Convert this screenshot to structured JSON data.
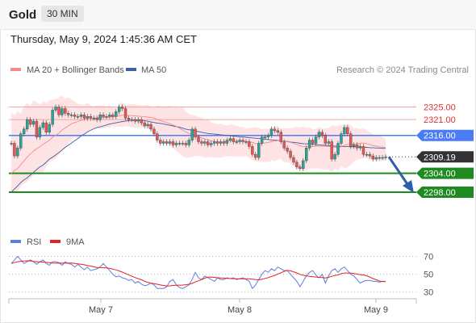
{
  "header": {
    "title": "Gold",
    "timeframe": "30 MIN"
  },
  "datetime": "Thursday, May 9, 2024 1:45:36 AM CET",
  "colors": {
    "up": "#26a69a",
    "down": "#ef5350",
    "ma20": "#f08c8c",
    "ma50": "#3f5fa8",
    "band_fill": "#fde0e0",
    "resistance": "#f4a3a3",
    "pivot": "#4a7cf5",
    "support": "#1f8a1f",
    "current": "#333333",
    "rsi": "#5b7fdc",
    "rsi_ma": "#e62020",
    "arrow": "#2e5fa8"
  },
  "chart_data": [
    {
      "type": "line",
      "legend": [
        {
          "name": "MA 20 + Bollinger Bands",
          "color": "#f08c8c"
        },
        {
          "name": "MA 50",
          "color": "#3f5fa8"
        }
      ],
      "copyright": "Research © 2024 Trading Central",
      "ylim": [
        2293.4,
        2332.3
      ],
      "x_labels": [
        "May 7",
        "May 8",
        "May 9"
      ],
      "levels": [
        {
          "label": "2325.00",
          "value": 2325.0,
          "kind": "resistance"
        },
        {
          "label": "2321.00",
          "value": 2321.0,
          "kind": "resistance"
        },
        {
          "label": "2316.00",
          "value": 2316.0,
          "kind": "pivot"
        },
        {
          "label": "2304.00",
          "value": 2304.0,
          "kind": "support"
        },
        {
          "label": "2298.00",
          "value": 2298.0,
          "kind": "support"
        }
      ],
      "current_price": {
        "label": "2309.19",
        "value": 2309.19
      },
      "forecast": {
        "from": 2309.2,
        "to": 2298.0
      },
      "price_series": [
        2313.5,
        2309.5,
        2312.0,
        2316.5,
        2318.0,
        2321.0,
        2319.5,
        2320.5,
        2315.5,
        2318.5,
        2320.0,
        2317.0,
        2319.5,
        2324.0,
        2325.0,
        2322.5,
        2324.5,
        2323.0,
        2322.5,
        2322.5,
        2322.0,
        2322.0,
        2322.5,
        2321.5,
        2322.0,
        2321.5,
        2321.5,
        2321.0,
        2322.5,
        2322.0,
        2322.0,
        2322.5,
        2322.0,
        2323.5,
        2325.0,
        2324.5,
        2321.5,
        2321.0,
        2321.0,
        2320.5,
        2321.0,
        2320.0,
        2319.0,
        2319.5,
        2318.0,
        2316.5,
        2314.5,
        2313.5,
        2314.0,
        2313.5,
        2314.0,
        2313.0,
        2313.5,
        2313.5,
        2313.5,
        2313.0,
        2314.5,
        2318.0,
        2315.5,
        2314.0,
        2313.5,
        2314.0,
        2313.0,
        2313.5,
        2314.0,
        2313.5,
        2314.0,
        2313.5,
        2314.5,
        2315.0,
        2314.0,
        2314.0,
        2314.5,
        2314.0,
        2314.0,
        2312.5,
        2310.0,
        2309.0,
        2313.5,
        2315.5,
        2315.5,
        2316.0,
        2318.0,
        2317.5,
        2317.0,
        2314.0,
        2312.0,
        2311.0,
        2309.0,
        2307.5,
        2306.0,
        2305.5,
        2308.0,
        2312.0,
        2314.5,
        2313.5,
        2315.5,
        2317.0,
        2316.0,
        2313.5,
        2314.0,
        2308.5,
        2310.0,
        2313.5,
        2316.5,
        2318.5,
        2316.5,
        2312.5,
        2313.0,
        2312.0,
        2312.5,
        2310.0,
        2310.0,
        2309.5,
        2308.5,
        2309.0,
        2309.0,
        2309.0,
        2309.19
      ],
      "ma20_series": [
        2303.9,
        2304.9,
        2305.5,
        2306.7,
        2307.9,
        2309.1,
        2310.1,
        2311.0,
        2311.8,
        2312.4,
        2313.2,
        2313.8,
        2314.5,
        2315.4,
        2316.1,
        2316.7,
        2317.7,
        2318.4,
        2319.0,
        2319.7,
        2320.1,
        2320.4,
        2320.8,
        2321.1,
        2321.3,
        2321.6,
        2321.5,
        2321.6,
        2321.6,
        2321.8,
        2321.7,
        2321.8,
        2321.9,
        2322.0,
        2322.2,
        2322.4,
        2322.4,
        2322.3,
        2322.3,
        2322.2,
        2322.1,
        2322.0,
        2321.9,
        2321.8,
        2321.7,
        2321.5,
        2321.1,
        2320.7,
        2320.4,
        2320.0,
        2319.7,
        2319.3,
        2318.9,
        2318.3,
        2317.7,
        2317.1,
        2316.6,
        2316.4,
        2316.0,
        2315.6,
        2315.2,
        2314.9,
        2314.6,
        2314.3,
        2314.1,
        2313.9,
        2313.9,
        2313.9,
        2314.2,
        2314.4,
        2314.3,
        2314.2,
        2314.2,
        2314.2,
        2314.1,
        2314.0,
        2313.8,
        2313.4,
        2313.4,
        2313.5,
        2313.6,
        2313.8,
        2314.0,
        2314.2,
        2314.3,
        2314.3,
        2314.2,
        2314.0,
        2313.8,
        2313.5,
        2313.1,
        2312.7,
        2312.5,
        2312.5,
        2312.5,
        2312.5,
        2312.6,
        2312.6,
        2312.6,
        2312.6,
        2312.5,
        2312.4,
        2312.2,
        2312.2,
        2312.4,
        2312.9,
        2313.1,
        2313.1,
        2313.2,
        2313.4,
        2313.5,
        2313.6,
        2313.4,
        2313.1,
        2312.8,
        2312.6,
        2312.4,
        2312.3,
        2312.1
      ],
      "upper_band_series": [
        2323.2,
        2322.4,
        2323.6,
        2322.9,
        2325.3,
        2326.3,
        2325.3,
        2327.2,
        2326.6,
        2325.8,
        2326.8,
        2326.3,
        2327.1,
        2327.3,
        2327.5,
        2328.1,
        2328.5,
        2327.7,
        2328.0,
        2327.4,
        2326.8,
        2326.1,
        2325.7,
        2325.7,
        2326.3,
        2325.5,
        2325.2,
        2325.6,
        2325.5,
        2325.5,
        2325.2,
        2325.4,
        2325.0,
        2324.8,
        2325.8,
        2326.5,
        2325.7,
        2325.8,
        2325.9,
        2325.8,
        2325.7,
        2325.5,
        2325.6,
        2325.8,
        2325.0,
        2324.8,
        2325.5,
        2325.3,
        2324.9,
        2325.3,
        2325.4,
        2325.2,
        2325.2,
        2324.7,
        2325.0,
        2323.6,
        2322.8,
        2322.4,
        2322.4,
        2321.9,
        2321.6,
        2321.1,
        2321.2,
        2320.1,
        2319.8,
        2319.6,
        2319.7,
        2319.3,
        2319.2,
        2319.5,
        2319.4,
        2319.2,
        2318.6,
        2318.7,
        2318.1,
        2318.4,
        2318.4,
        2318.7,
        2318.4,
        2317.9,
        2318.2,
        2317.9,
        2318.5,
        2319.1,
        2319.0,
        2318.2,
        2318.2,
        2318.3,
        2318.3,
        2318.5,
        2318.7,
        2318.5,
        2318.9,
        2318.4,
        2318.6,
        2317.9,
        2318.0,
        2318.6,
        2318.3,
        2318.2,
        2318.5,
        2319.1,
        2319.1,
        2318.9,
        2319.3,
        2319.3,
        2319.6,
        2319.3,
        2318.2,
        2318.4,
        2318.0,
        2318.2,
        2317.8,
        2317.0,
        2316.4,
        2316.1,
        2315.8,
        2315.5,
        2315.0
      ],
      "lower_band_series": [
        2298.3,
        2297.9,
        2297.9,
        2300.0,
        2300.8,
        2301.2,
        2302.6,
        2303.4,
        2304.2,
        2303.6,
        2304.3,
        2306.1,
        2307.7,
        2308.1,
        2308.8,
        2309.9,
        2310.7,
        2311.9,
        2313.3,
        2314.6,
        2315.3,
        2315.3,
        2316.0,
        2316.3,
        2317.2,
        2317.8,
        2318.1,
        2318.4,
        2318.2,
        2318.2,
        2318.5,
        2318.4,
        2318.9,
        2318.8,
        2318.8,
        2318.7,
        2319.0,
        2318.8,
        2318.5,
        2318.5,
        2318.5,
        2318.6,
        2318.6,
        2318.2,
        2317.5,
        2316.6,
        2315.7,
        2314.8,
        2313.5,
        2313.2,
        2312.9,
        2312.0,
        2311.2,
        2310.3,
        2309.5,
        2308.9,
        2309.0,
        2309.1,
        2309.6,
        2309.4,
        2309.3,
        2309.0,
        2309.2,
        2309.1,
        2308.9,
        2309.0,
        2309.0,
        2309.2,
        2309.4,
        2309.4,
        2309.3,
        2309.3,
        2309.5,
        2309.2,
        2309.5,
        2308.9,
        2308.1,
        2307.8,
        2307.7,
        2307.6,
        2307.6,
        2307.5,
        2308.1,
        2307.8,
        2308.4,
        2308.6,
        2307.4,
        2307.5,
        2307.1,
        2306.2,
        2305.5,
        2305.3,
        2304.7,
        2305.0,
        2305.5,
        2305.5,
        2305.5,
        2305.5,
        2305.2,
        2305.2,
        2305.1,
        2304.5,
        2305.5,
        2304.9,
        2306.1,
        2305.6,
        2305.8,
        2306.6,
        2307.7,
        2308.3,
        2308.5,
        2308.8,
        2308.8,
        2308.2,
        2308.3,
        2308.1,
        2307.7,
        2308.0,
        2307.9
      ],
      "ma50_series": [
        2298.0,
        2299.0,
        2300.0,
        2301.1,
        2301.9,
        2302.6,
        2303.4,
        2304.3,
        2305.2,
        2306.0,
        2306.6,
        2307.5,
        2308.5,
        2309.1,
        2309.8,
        2310.6,
        2311.4,
        2312.2,
        2312.9,
        2313.6,
        2314.3,
        2315.0,
        2315.8,
        2316.4,
        2317.1,
        2317.6,
        2318.1,
        2318.5,
        2318.7,
        2319.0,
        2319.3,
        2319.6,
        2319.8,
        2320.0,
        2320.2,
        2320.4,
        2320.5,
        2320.7,
        2320.8,
        2320.9,
        2320.9,
        2320.8,
        2320.6,
        2320.5,
        2320.3,
        2320.1,
        2319.9,
        2319.8,
        2319.6,
        2319.4,
        2319.2,
        2319.0,
        2318.8,
        2318.6,
        2318.3,
        2318.0,
        2317.8,
        2317.6,
        2317.4,
        2317.2,
        2317.0,
        2316.8,
        2316.6,
        2316.5,
        2316.4,
        2316.3,
        2316.2,
        2316.1,
        2316.0,
        2315.9,
        2315.8,
        2315.7,
        2315.6,
        2315.5,
        2315.4,
        2315.3,
        2315.2,
        2315.1,
        2315.0,
        2314.9,
        2314.8,
        2314.7,
        2314.6,
        2314.5,
        2314.4,
        2314.3,
        2314.2,
        2314.1,
        2313.9,
        2313.8,
        2313.7,
        2313.5,
        2313.4,
        2313.3,
        2313.3,
        2313.2,
        2313.1,
        2313.0,
        2312.9,
        2312.9,
        2312.8,
        2312.7,
        2312.6,
        2312.6,
        2312.5,
        2312.5,
        2312.5,
        2312.4,
        2312.4,
        2312.4,
        2312.3,
        2312.3,
        2312.2,
        2312.1,
        2312.1,
        2312.0,
        2312.0,
        2311.9,
        2311.9
      ]
    },
    {
      "type": "line",
      "legend": [
        {
          "name": "RSI",
          "color": "#5b7fdc"
        },
        {
          "name": "9MA",
          "color": "#e62020"
        }
      ],
      "ylim": [
        26,
        75
      ],
      "y_ticks": [
        70,
        50,
        30
      ],
      "rsi_series": [
        62.0,
        66.0,
        70.0,
        66.0,
        62.0,
        64.0,
        66.0,
        64.0,
        61.0,
        64.0,
        66.0,
        62.0,
        60.0,
        64.0,
        64.0,
        63.0,
        60.0,
        64.0,
        62.0,
        61.0,
        58.0,
        61.0,
        58.0,
        55.0,
        58.0,
        54.0,
        55.0,
        56.0,
        58.0,
        62.0,
        58.0,
        54.0,
        50.0,
        47.0,
        48.0,
        46.0,
        45.0,
        43.0,
        44.0,
        40.0,
        42.0,
        39.0,
        37.0,
        38.0,
        40.0,
        38.0,
        34.0,
        34.0,
        34.0,
        36.0,
        42.0,
        44.0,
        38.0,
        35.0,
        34.0,
        36.0,
        38.0,
        44.0,
        52.0,
        46.0,
        44.0,
        48.0,
        46.0,
        44.0,
        42.0,
        46.0,
        44.0,
        44.0,
        46.0,
        45.0,
        46.0,
        44.0,
        45.0,
        46.0,
        44.0,
        42.0,
        34.0,
        38.0,
        44.0,
        50.0,
        54.0,
        52.0,
        56.0,
        54.0,
        58.0,
        56.0,
        54.0,
        54.0,
        50.0,
        46.0,
        42.0,
        36.0,
        42.0,
        48.0,
        52.0,
        54.0,
        49.0,
        46.0,
        50.0,
        40.0,
        48.0,
        54.0,
        56.0,
        52.0,
        56.0,
        58.0,
        54.0,
        50.0,
        48.0,
        44.0,
        40.0,
        42.0,
        43.0,
        43.0,
        42.0,
        42.0,
        41.0,
        42.0,
        42.0
      ],
      "rsi_ma_series": [
        62.0,
        63.0,
        64.0,
        64.5,
        64.8,
        65.0,
        64.9,
        64.3,
        63.9,
        63.8,
        63.6,
        63.3,
        63.0,
        62.6,
        62.4,
        62.6,
        62.4,
        62.5,
        62.4,
        62.5,
        62.1,
        61.7,
        61.2,
        60.6,
        59.8,
        59.1,
        58.3,
        57.6,
        57.3,
        57.2,
        57.0,
        56.5,
        55.8,
        54.8,
        53.7,
        52.3,
        50.8,
        49.3,
        47.7,
        46.2,
        45.0,
        43.8,
        42.1,
        40.9,
        40.0,
        39.4,
        38.7,
        37.9,
        37.3,
        36.8,
        36.9,
        37.4,
        37.6,
        37.7,
        37.8,
        38.2,
        38.7,
        39.6,
        41.2,
        42.6,
        43.9,
        45.6,
        46.6,
        46.8,
        46.4,
        46.0,
        45.8,
        45.6,
        45.3,
        45.1,
        45.0,
        44.9,
        44.8,
        44.9,
        44.9,
        44.9,
        44.4,
        43.9,
        43.7,
        44.2,
        45.2,
        46.1,
        47.4,
        48.6,
        50.1,
        51.6,
        53.2,
        54.2,
        53.8,
        52.7,
        51.4,
        49.8,
        48.8,
        48.1,
        47.6,
        47.2,
        46.8,
        46.4,
        46.1,
        45.8,
        46.5,
        47.6,
        48.6,
        49.2,
        50.7,
        51.3,
        51.3,
        51.2,
        50.8,
        50.1,
        49.4,
        49.1,
        48.2,
        46.8,
        45.1,
        43.8,
        42.3,
        41.8,
        41.6
      ]
    }
  ]
}
